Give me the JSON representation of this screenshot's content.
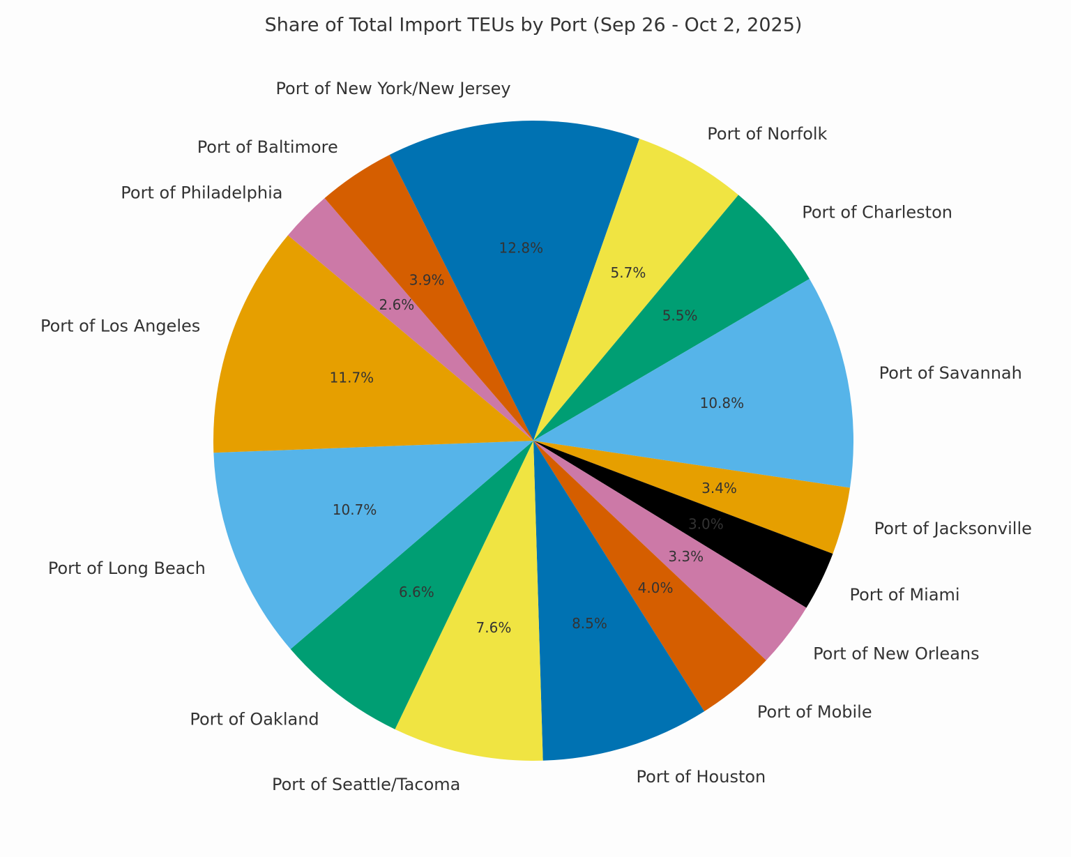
{
  "chart_data": {
    "type": "pie",
    "title": "Share of Total Import TEUs by Port (Sep 26 - Oct 2, 2025)",
    "categories": [
      "Port of New York/New Jersey",
      "Port of Norfolk",
      "Port of Charleston",
      "Port of Savannah",
      "Port of Jacksonville",
      "Port of Miami",
      "Port of New Orleans",
      "Port of Mobile",
      "Port of Houston",
      "Port of Seattle/Tacoma",
      "Port of Oakland",
      "Port of Long Beach",
      "Port of Los Angeles",
      "Port of Philadelphia",
      "Port of Baltimore"
    ],
    "values": [
      12.8,
      5.7,
      5.5,
      10.8,
      3.4,
      3.0,
      3.3,
      4.0,
      8.5,
      7.6,
      6.6,
      10.7,
      11.7,
      2.6,
      3.9
    ],
    "value_labels": [
      "12.8%",
      "5.7%",
      "5.5%",
      "10.8%",
      "3.4%",
      "3.0%",
      "3.3%",
      "4.0%",
      "8.5%",
      "7.6%",
      "6.6%",
      "10.7%",
      "11.7%",
      "2.6%",
      "3.9%"
    ],
    "colors": [
      "#0072b2",
      "#f0e442",
      "#009e73",
      "#56b4e9",
      "#e69f00",
      "#000000",
      "#cc79a7",
      "#d55e00",
      "#0072b2",
      "#f0e442",
      "#009e73",
      "#56b4e9",
      "#e69f00",
      "#cc79a7",
      "#d55e00"
    ]
  }
}
